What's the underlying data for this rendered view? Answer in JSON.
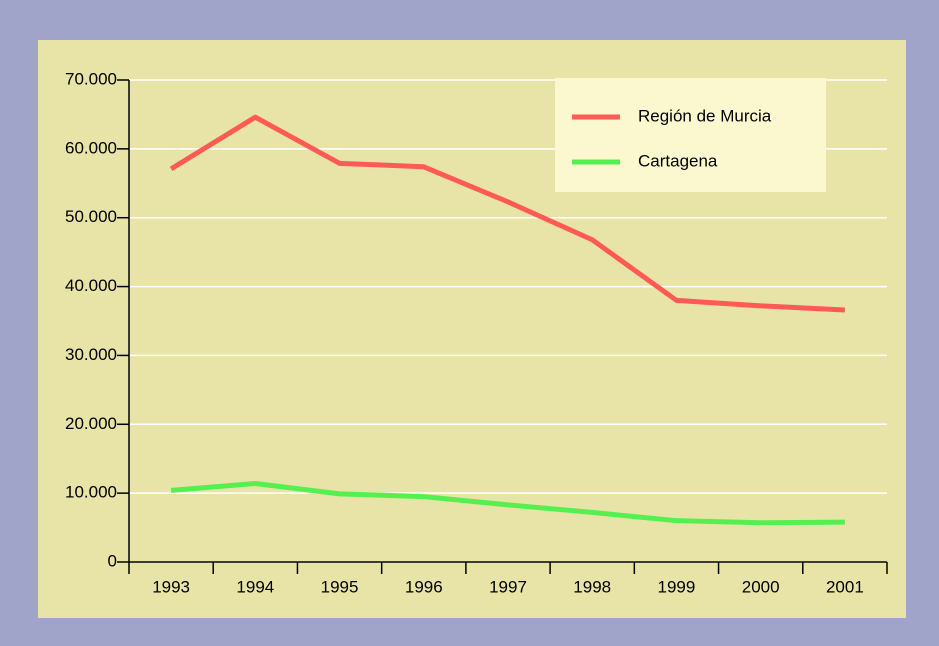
{
  "chart_data": {
    "type": "line",
    "categories": [
      "1993",
      "1994",
      "1995",
      "1996",
      "1997",
      "1998",
      "1999",
      "2000",
      "2001"
    ],
    "series": [
      {
        "name": "Región de Murcia",
        "color": "#ff5a55",
        "values": [
          57100,
          64600,
          57900,
          57400,
          52300,
          46800,
          38000,
          37200,
          36600
        ]
      },
      {
        "name": "Cartagena",
        "color": "#55f050",
        "values": [
          10400,
          11400,
          9900,
          9500,
          8300,
          7200,
          6000,
          5700,
          5800
        ]
      }
    ],
    "ylim": [
      0,
      70000
    ],
    "yticks": [
      0,
      {
        "value": 10000,
        "label": "10.000"
      },
      {
        "value": 20000,
        "label": "20.000"
      },
      {
        "value": 30000,
        "label": "30.000"
      },
      {
        "value": 40000,
        "label": "40.000"
      },
      {
        "value": 50000,
        "label": "50.000"
      },
      {
        "value": 60000,
        "label": "60.000"
      },
      {
        "value": 70000,
        "label": "70.000"
      }
    ],
    "grid": true,
    "legend": "top-right"
  }
}
